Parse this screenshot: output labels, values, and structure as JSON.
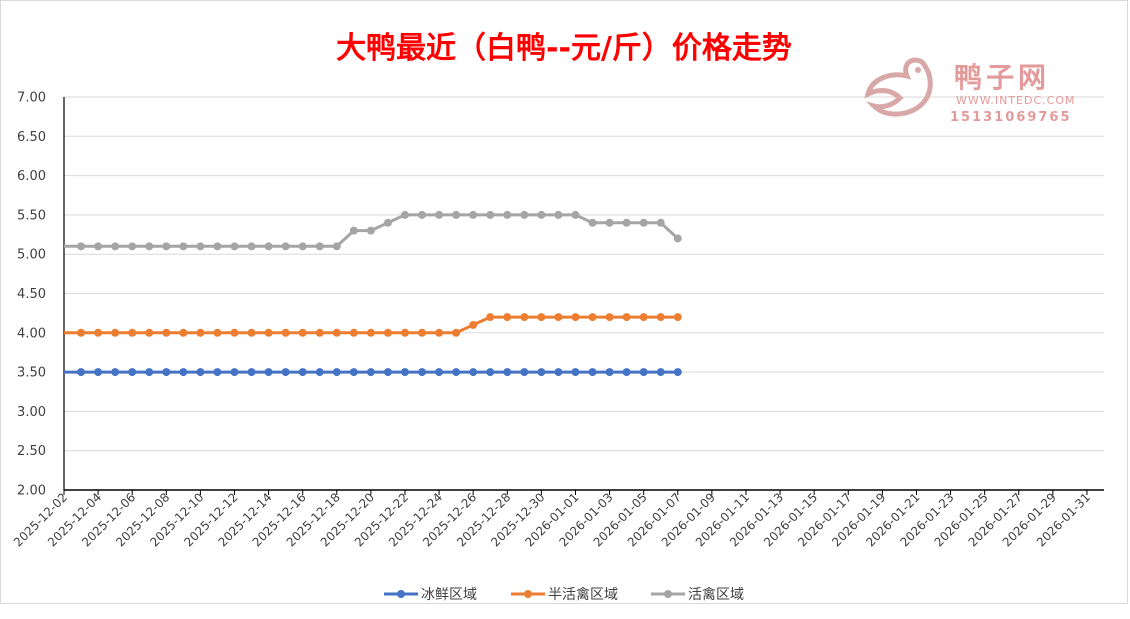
{
  "chart_data": {
    "type": "line",
    "title": "大鸭最近（白鸭--元/斤）价格走势",
    "xlabel": "",
    "ylabel": "",
    "ylim": [
      2.0,
      7.0
    ],
    "yticks": [
      "2.00",
      "2.50",
      "3.00",
      "3.50",
      "4.00",
      "4.50",
      "5.00",
      "5.50",
      "6.00",
      "6.50",
      "7.00"
    ],
    "xlim": [
      "2025-12-02",
      "2026-02-01"
    ],
    "xtick_labels": [
      "2025-12-02",
      "2025-12-04",
      "2025-12-06",
      "2025-12-08",
      "2025-12-10",
      "2025-12-12",
      "2025-12-14",
      "2025-12-16",
      "2025-12-18",
      "2025-12-20",
      "2025-12-22",
      "2025-12-24",
      "2025-12-26",
      "2025-12-28",
      "2025-12-30",
      "2026-01-01",
      "2026-01-03",
      "2026-01-05",
      "2026-01-07",
      "2026-01-09",
      "2026-01-11",
      "2026-01-13",
      "2026-01-15",
      "2026-01-17",
      "2026-01-19",
      "2026-01-21",
      "2026-01-23",
      "2026-01-25",
      "2026-01-27",
      "2026-01-29",
      "2026-01-31"
    ],
    "x": [
      "2025-12-03",
      "2025-12-04",
      "2025-12-05",
      "2025-12-06",
      "2025-12-07",
      "2025-12-08",
      "2025-12-09",
      "2025-12-10",
      "2025-12-11",
      "2025-12-12",
      "2025-12-13",
      "2025-12-14",
      "2025-12-15",
      "2025-12-16",
      "2025-12-17",
      "2025-12-18",
      "2025-12-19",
      "2025-12-20",
      "2025-12-21",
      "2025-12-22",
      "2025-12-23",
      "2025-12-24",
      "2025-12-25",
      "2025-12-26",
      "2025-12-27",
      "2025-12-28",
      "2025-12-29",
      "2025-12-30",
      "2025-12-31",
      "2026-01-01",
      "2026-01-02",
      "2026-01-03",
      "2026-01-04",
      "2026-01-05",
      "2026-01-06",
      "2026-01-07"
    ],
    "series": [
      {
        "name": "冰鲜区域",
        "color": "#4472c4",
        "values": [
          3.5,
          3.5,
          3.5,
          3.5,
          3.5,
          3.5,
          3.5,
          3.5,
          3.5,
          3.5,
          3.5,
          3.5,
          3.5,
          3.5,
          3.5,
          3.5,
          3.5,
          3.5,
          3.5,
          3.5,
          3.5,
          3.5,
          3.5,
          3.5,
          3.5,
          3.5,
          3.5,
          3.5,
          3.5,
          3.5,
          3.5,
          3.5,
          3.5,
          3.5,
          3.5,
          3.5
        ]
      },
      {
        "name": "半活禽区域",
        "color": "#ed7d31",
        "values": [
          4.0,
          4.0,
          4.0,
          4.0,
          4.0,
          4.0,
          4.0,
          4.0,
          4.0,
          4.0,
          4.0,
          4.0,
          4.0,
          4.0,
          4.0,
          4.0,
          4.0,
          4.0,
          4.0,
          4.0,
          4.0,
          4.0,
          4.0,
          4.1,
          4.2,
          4.2,
          4.2,
          4.2,
          4.2,
          4.2,
          4.2,
          4.2,
          4.2,
          4.2,
          4.2,
          4.2
        ]
      },
      {
        "name": "活禽区域",
        "color": "#a5a5a5",
        "values": [
          5.1,
          5.1,
          5.1,
          5.1,
          5.1,
          5.1,
          5.1,
          5.1,
          5.1,
          5.1,
          5.1,
          5.1,
          5.1,
          5.1,
          5.1,
          5.1,
          5.3,
          5.3,
          5.4,
          5.5,
          5.5,
          5.5,
          5.5,
          5.5,
          5.5,
          5.5,
          5.5,
          5.5,
          5.5,
          5.5,
          5.4,
          5.4,
          5.4,
          5.4,
          5.4,
          5.2
        ]
      }
    ],
    "grid": true,
    "legend_position": "bottom"
  },
  "watermark": {
    "brand": "鸭子网",
    "site": "WWW.INTEDC.COM",
    "phone": "15131069765",
    "color": "#e39a9a"
  }
}
